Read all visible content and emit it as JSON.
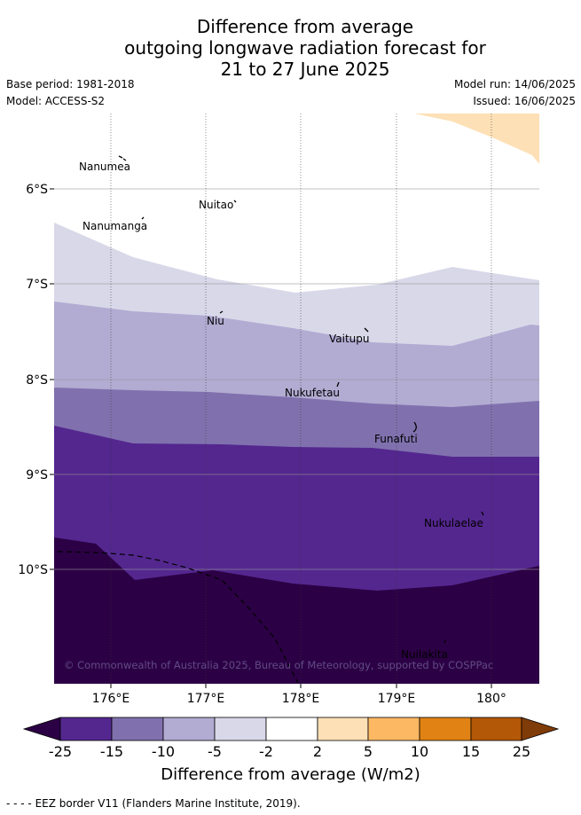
{
  "header": {
    "title_lines": [
      "Difference from average",
      "outgoing longwave radiation forecast for",
      "21 to 27 June 2025"
    ],
    "base_period": "Base period: 1981-2018",
    "model": "Model: ACCESS-S2",
    "model_run": "Model run: 14/06/2025",
    "issued": "Issued: 16/06/2025"
  },
  "map": {
    "lon_range": [
      175.4,
      180.5
    ],
    "lat_range": [
      -11.2,
      -5.2
    ],
    "lon_ticks": [
      "176°E",
      "177°E",
      "178°E",
      "179°E",
      "180°"
    ],
    "lat_ticks": [
      "6°S",
      "7°S",
      "8°S",
      "9°S",
      "10°S"
    ],
    "places": [
      {
        "name": "Nanumea"
      },
      {
        "name": "Nuitao"
      },
      {
        "name": "Nanumanga"
      },
      {
        "name": "Niu"
      },
      {
        "name": "Vaitupu"
      },
      {
        "name": "Nukufetau"
      },
      {
        "name": "Funafuti"
      },
      {
        "name": "Nukulaelae"
      },
      {
        "name": "Nuilakita"
      }
    ],
    "copyright": "© Commonwealth of Australia 2025, Bureau of Meteorology, supported by COSPPac"
  },
  "legend": {
    "ticks": [
      "-25",
      "-15",
      "-10",
      "-5",
      "-2",
      "2",
      "5",
      "10",
      "15",
      "25"
    ],
    "colors": [
      "#2c0045",
      "#54278f",
      "#8071ae",
      "#b2abd2",
      "#d8d8e9",
      "#ffffff",
      "#fee0b6",
      "#fdb863",
      "#e08214",
      "#b35806",
      "#7f3b08"
    ],
    "label": "Difference from average (W/m2)"
  },
  "footer": {
    "eez_note": "- -  - -  EEZ border V11 (Flanders Marine Institute, 2019)."
  }
}
